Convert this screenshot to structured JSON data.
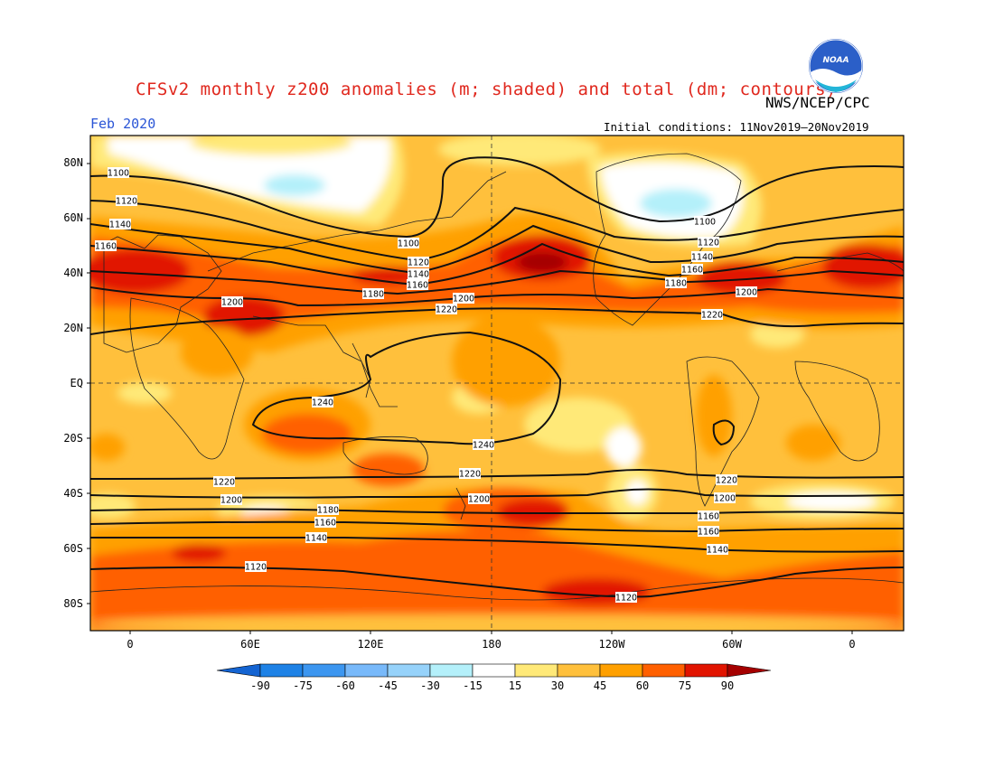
{
  "title": "CFSv2 monthly z200 anomalies (m; shaded) and total (dm; contours)",
  "agency": "NWS/NCEP/CPC",
  "month": "Feb 2020",
  "initial_conditions": "Initial conditions: 11Nov2019–20Nov2019",
  "logo_text": "NOAA",
  "map": {
    "latitude_labels": [
      "80N",
      "60N",
      "40N",
      "20N",
      "EQ",
      "20S",
      "40S",
      "60S",
      "80S"
    ],
    "longitude_labels": [
      "0",
      "60E",
      "120E",
      "180",
      "120W",
      "60W",
      "0"
    ],
    "contour_labels": [
      "1100",
      "1120",
      "1140",
      "1160",
      "1180",
      "1200",
      "1220",
      "1240"
    ]
  },
  "colorbar": {
    "levels": [
      "-90",
      "-75",
      "-60",
      "-45",
      "-30",
      "-15",
      "15",
      "30",
      "45",
      "60",
      "75",
      "90"
    ],
    "colors": [
      "#1464d2",
      "#1e82e6",
      "#3c96f0",
      "#78b9fa",
      "#96d2fa",
      "#b4f0fa",
      "#ffffff",
      "#ffe978",
      "#ffc03c",
      "#ffa000",
      "#ff6000",
      "#e11400",
      "#a50000"
    ]
  }
}
